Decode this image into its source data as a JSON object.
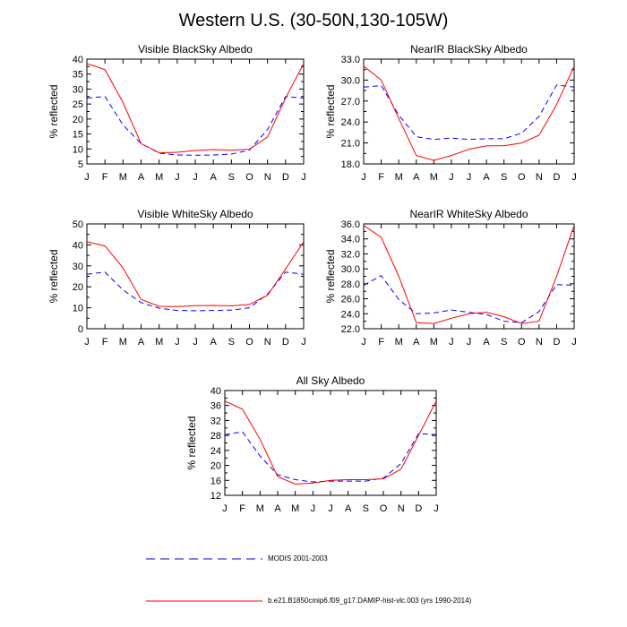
{
  "page": {
    "title": "Western U.S. (30-50N,130-105W)"
  },
  "months": [
    "J",
    "F",
    "M",
    "A",
    "M",
    "J",
    "J",
    "A",
    "S",
    "O",
    "N",
    "D",
    "J"
  ],
  "legend": [
    {
      "label": "MODIS 2001-2003",
      "color": "#0000ff",
      "style": "dashed"
    },
    {
      "label": "b.e21.B1850cmip6.f09_g17.DAMIP-hist-vlc.003 (yrs 1990-2014)",
      "color": "#ff0000",
      "style": "solid"
    }
  ],
  "chart_data": [
    {
      "type": "line",
      "title": "Visible BlackSky Albedo",
      "ylabel": "% reflected",
      "ylim": [
        5,
        40
      ],
      "yticks": [
        5,
        10,
        15,
        20,
        25,
        30,
        35,
        40
      ],
      "ytick_labels": [
        "5",
        "10",
        "15",
        "20",
        "25",
        "30",
        "35",
        "40"
      ],
      "categories": [
        "J",
        "F",
        "M",
        "A",
        "M",
        "J",
        "J",
        "A",
        "S",
        "O",
        "N",
        "D",
        "J"
      ],
      "series": [
        {
          "name": "MODIS 2001-2003",
          "values": [
            27.0,
            27.5,
            18.0,
            11.8,
            8.6,
            8.0,
            7.9,
            8.0,
            8.3,
            9.6,
            16.5,
            27.5,
            27.0
          ]
        },
        {
          "name": "b.e21.B1850cmip6.f09_g17.DAMIP-hist-vlc.003 (yrs 1990-2014)",
          "values": [
            38.5,
            36.5,
            25.5,
            11.8,
            8.7,
            8.9,
            9.5,
            9.8,
            9.6,
            9.9,
            14.0,
            27.0,
            38.5
          ]
        }
      ]
    },
    {
      "type": "line",
      "title": "NearIR BlackSky Albedo",
      "ylabel": "% reflected",
      "ylim": [
        18,
        33
      ],
      "yticks": [
        18,
        21,
        24,
        27,
        30,
        33
      ],
      "ytick_labels": [
        "18.0",
        "21.0",
        "24.0",
        "27.0",
        "30.0",
        "33.0"
      ],
      "categories": [
        "J",
        "F",
        "M",
        "A",
        "M",
        "J",
        "J",
        "A",
        "S",
        "O",
        "N",
        "D",
        "J"
      ],
      "series": [
        {
          "name": "MODIS 2001-2003",
          "values": [
            29.0,
            29.2,
            25.0,
            21.9,
            21.5,
            21.7,
            21.5,
            21.6,
            21.6,
            22.4,
            24.8,
            29.3,
            29.0
          ]
        },
        {
          "name": "b.e21.B1850cmip6.f09_g17.DAMIP-hist-vlc.003 (yrs 1990-2014)",
          "values": [
            32.0,
            30.0,
            24.5,
            19.2,
            18.5,
            19.2,
            20.1,
            20.6,
            20.6,
            21.0,
            22.1,
            26.5,
            32.0
          ]
        }
      ]
    },
    {
      "type": "line",
      "title": "Visible WhiteSky Albedo",
      "ylabel": "% reflected",
      "ylim": [
        0,
        50
      ],
      "yticks": [
        0,
        10,
        20,
        30,
        40,
        50
      ],
      "ytick_labels": [
        "0",
        "10",
        "20",
        "30",
        "40",
        "50"
      ],
      "categories": [
        "J",
        "F",
        "M",
        "A",
        "M",
        "J",
        "J",
        "A",
        "S",
        "O",
        "N",
        "D",
        "J"
      ],
      "series": [
        {
          "name": "MODIS 2001-2003",
          "values": [
            26.0,
            27.0,
            18.5,
            12.5,
            9.8,
            8.7,
            8.6,
            8.7,
            8.9,
            10.0,
            16.5,
            27.0,
            26.0
          ]
        },
        {
          "name": "b.e21.B1850cmip6.f09_g17.DAMIP-hist-vlc.003 (yrs 1990-2014)",
          "values": [
            41.5,
            39.5,
            29.0,
            14.0,
            10.7,
            10.6,
            11.0,
            11.1,
            10.9,
            11.6,
            16.0,
            28.5,
            41.5
          ]
        }
      ]
    },
    {
      "type": "line",
      "title": "NearIR WhiteSky Albedo",
      "ylabel": "% reflected",
      "ylim": [
        22,
        36
      ],
      "yticks": [
        22,
        24,
        26,
        28,
        30,
        32,
        34,
        36
      ],
      "ytick_labels": [
        "22.0",
        "24.0",
        "26.0",
        "28.0",
        "30.0",
        "32.0",
        "34.0",
        "36.0"
      ],
      "categories": [
        "J",
        "F",
        "M",
        "A",
        "M",
        "J",
        "J",
        "A",
        "S",
        "O",
        "N",
        "D",
        "J"
      ],
      "series": [
        {
          "name": "MODIS 2001-2003",
          "values": [
            27.8,
            29.1,
            25.9,
            24.0,
            24.1,
            24.5,
            24.2,
            23.9,
            23.0,
            22.8,
            24.3,
            27.9,
            27.8
          ]
        },
        {
          "name": "b.e21.B1850cmip6.f09_g17.DAMIP-hist-vlc.003 (yrs 1990-2014)",
          "values": [
            35.8,
            34.2,
            29.0,
            22.8,
            22.7,
            23.4,
            24.0,
            24.2,
            23.6,
            22.7,
            23.0,
            29.0,
            35.8
          ]
        }
      ]
    },
    {
      "type": "line",
      "title": "All Sky Albedo",
      "ylabel": "% reflected",
      "ylim": [
        12,
        40
      ],
      "yticks": [
        12,
        16,
        20,
        24,
        28,
        32,
        36,
        40
      ],
      "ytick_labels": [
        "12",
        "16",
        "20",
        "24",
        "28",
        "32",
        "36",
        "40"
      ],
      "categories": [
        "J",
        "F",
        "M",
        "A",
        "M",
        "J",
        "J",
        "A",
        "S",
        "O",
        "N",
        "D",
        "J"
      ],
      "series": [
        {
          "name": "MODIS 2001-2003",
          "values": [
            28.2,
            29.0,
            22.5,
            17.5,
            16.2,
            15.6,
            15.8,
            15.8,
            15.8,
            16.6,
            20.5,
            28.5,
            28.2
          ]
        },
        {
          "name": "b.e21.B1850cmip6.f09_g17.DAMIP-hist-vlc.003 (yrs 1990-2014)",
          "values": [
            37.2,
            35.0,
            27.0,
            17.0,
            15.0,
            15.3,
            16.0,
            16.2,
            16.2,
            16.4,
            19.0,
            28.0,
            37.2
          ]
        }
      ]
    }
  ]
}
